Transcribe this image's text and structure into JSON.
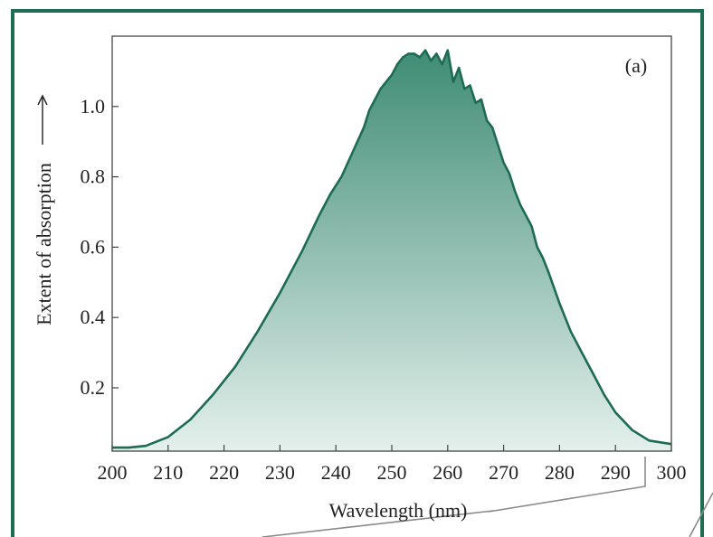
{
  "chart_data": {
    "type": "area",
    "panel_label": "(a)",
    "xlabel": "Wavelength (nm)",
    "ylabel": "Extent of absorption",
    "xlim": [
      200,
      300
    ],
    "ylim": [
      0.02,
      1.2
    ],
    "x_ticks": [
      200,
      210,
      220,
      230,
      240,
      250,
      260,
      270,
      280,
      290,
      300
    ],
    "y_ticks": [
      0.2,
      0.4,
      0.6,
      0.8,
      1.0
    ],
    "y_tick_labels": [
      "0.2",
      "0.4",
      "0.6",
      "0.8",
      "1.0"
    ],
    "grid": false,
    "colors": {
      "frame": "#1e6e56",
      "line": "#1e6b55",
      "fill_top": "#3f8c75",
      "fill_bottom": "#e4f0ec",
      "axes": "#444444"
    },
    "series": [
      {
        "x": [
          200,
          203,
          206,
          210,
          214,
          218,
          222,
          226,
          230,
          234,
          237,
          239,
          241,
          243,
          245,
          246,
          247,
          248,
          249,
          250,
          251,
          252,
          253,
          254,
          255,
          256,
          257,
          258,
          259,
          260,
          261,
          262,
          263,
          264,
          265,
          266,
          267,
          268,
          269,
          270,
          271,
          272,
          273,
          274,
          275,
          276,
          277,
          278,
          280,
          282,
          284,
          286,
          288,
          290,
          293,
          296,
          300
        ],
        "y": [
          0.03,
          0.03,
          0.035,
          0.06,
          0.11,
          0.18,
          0.26,
          0.36,
          0.47,
          0.59,
          0.69,
          0.75,
          0.8,
          0.87,
          0.94,
          0.99,
          1.02,
          1.05,
          1.07,
          1.09,
          1.12,
          1.14,
          1.15,
          1.15,
          1.14,
          1.16,
          1.13,
          1.15,
          1.12,
          1.16,
          1.07,
          1.11,
          1.05,
          1.06,
          1.01,
          1.02,
          0.96,
          0.94,
          0.89,
          0.84,
          0.81,
          0.76,
          0.72,
          0.69,
          0.66,
          0.6,
          0.57,
          0.53,
          0.44,
          0.36,
          0.3,
          0.24,
          0.18,
          0.13,
          0.08,
          0.05,
          0.04
        ]
      }
    ]
  }
}
